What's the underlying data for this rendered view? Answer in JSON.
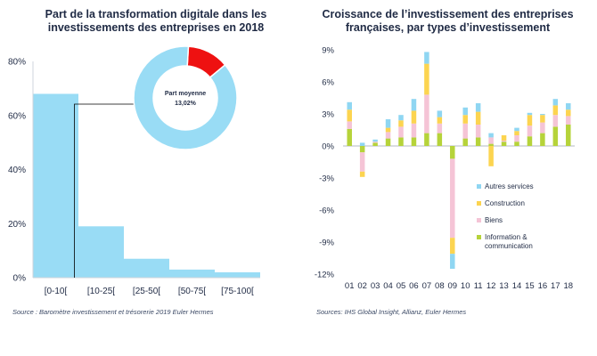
{
  "chart_data": [
    {
      "type": "bar",
      "title": "Part de la transformation digitale dans les investissements des entreprises en 2018",
      "categories": [
        "[0-10[",
        "[10-25[",
        "[25-50[",
        "[50-75[",
        "[75-100["
      ],
      "values": [
        68,
        19,
        7,
        3,
        2
      ],
      "ylim": [
        0,
        80
      ],
      "yticks": [
        "0%",
        "20%",
        "40%",
        "60%",
        "80%"
      ],
      "bar_color": "#99dcf5",
      "source": "Source : Baromètre investissement et trésorerie 2019 Euler Hermes",
      "inset": {
        "type": "pie",
        "label": "Part moyenne",
        "value_label": "13,02%",
        "slices": [
          {
            "value": 13.02,
            "color": "#ee1111"
          },
          {
            "value": 86.98,
            "color": "#99dcf5"
          }
        ]
      }
    },
    {
      "type": "bar",
      "stacked": true,
      "title": "Croissance de l’investissement des entreprises françaises, par types d’investissement",
      "categories": [
        "01",
        "02",
        "03",
        "04",
        "05",
        "06",
        "07",
        "08",
        "09",
        "10",
        "11",
        "12",
        "13",
        "14",
        "15",
        "16",
        "17",
        "18"
      ],
      "ylim": [
        -12,
        9
      ],
      "yticks": [
        "9%",
        "6%",
        "3%",
        "0%",
        "-3%",
        "-6%",
        "-9%",
        "-12%"
      ],
      "legend_position": "lower-right",
      "series": [
        {
          "name": "Information & communication",
          "color": "#b6d33a",
          "values": [
            1.6,
            -0.6,
            0.3,
            0.7,
            0.8,
            0.8,
            1.2,
            1.2,
            -1.2,
            0.7,
            0.8,
            0.2,
            0.4,
            0.4,
            0.9,
            1.2,
            1.8,
            2.0
          ]
        },
        {
          "name": "Biens",
          "color": "#f5c4d6",
          "values": [
            0.7,
            -1.8,
            0.1,
            0.6,
            1.0,
            1.3,
            3.6,
            0.9,
            -7.4,
            1.4,
            1.2,
            0.6,
            0.1,
            0.6,
            1.0,
            1.0,
            1.1,
            0.8
          ]
        },
        {
          "name": "Construction",
          "color": "#fcd450",
          "values": [
            1.1,
            -0.5,
            0.0,
            0.4,
            0.6,
            1.2,
            2.9,
            0.6,
            -1.5,
            0.8,
            1.2,
            -1.9,
            0.5,
            0.4,
            1.0,
            0.7,
            0.9,
            0.6
          ]
        },
        {
          "name": "Autres services",
          "color": "#8fd6f2",
          "values": [
            0.7,
            0.3,
            0.2,
            0.8,
            0.5,
            1.1,
            1.1,
            0.6,
            -1.4,
            0.7,
            0.8,
            0.4,
            0.0,
            0.3,
            0.2,
            0.1,
            0.6,
            0.6
          ]
        }
      ],
      "source": "Sources: IHS Global Insight, Allianz, Euler Hermes"
    }
  ]
}
